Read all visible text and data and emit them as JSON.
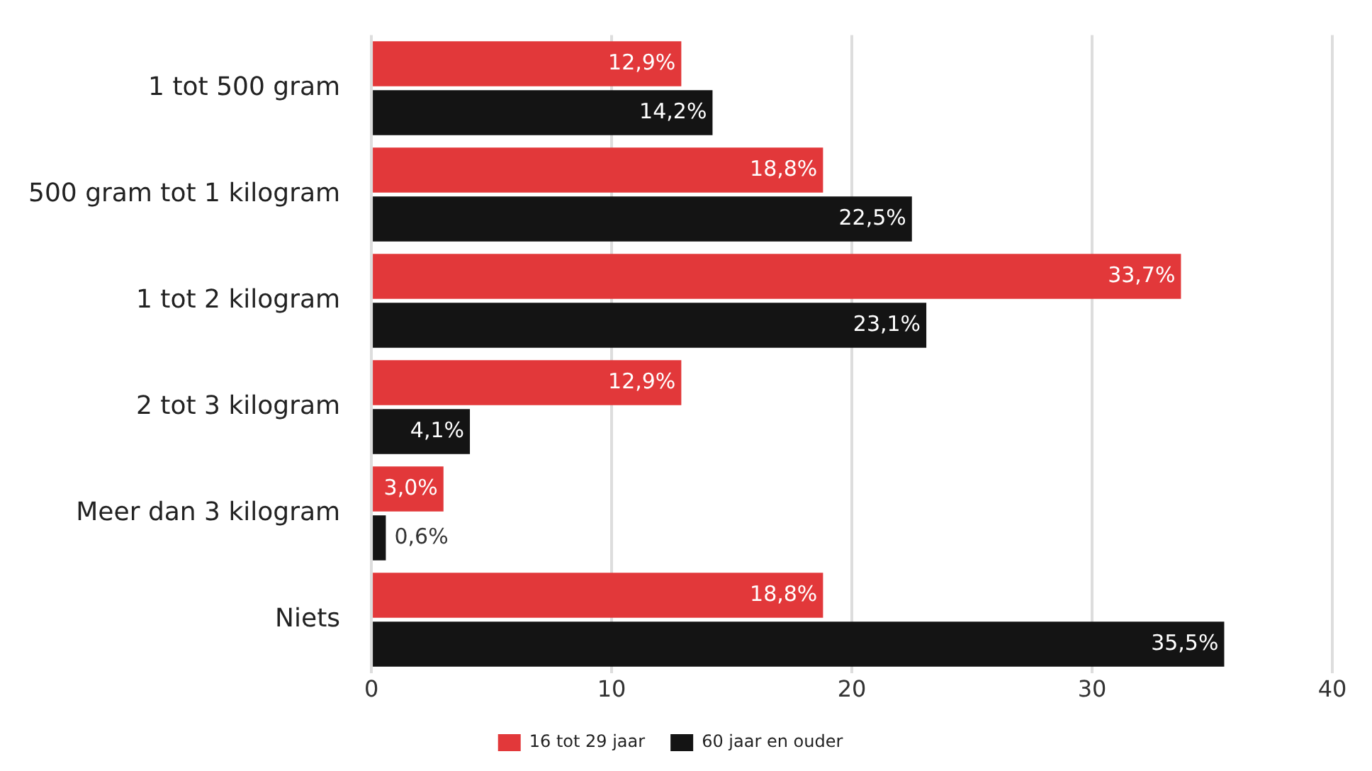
{
  "chart_data": {
    "type": "bar",
    "orientation": "horizontal",
    "categories": [
      "1 tot 500 gram",
      "500 gram tot 1 kilogram",
      "1 tot 2 kilogram",
      "2 tot 3 kilogram",
      "Meer dan 3 kilogram",
      "Niets"
    ],
    "series": [
      {
        "name": "16 tot 29 jaar",
        "color": "#e2383a",
        "values": [
          12.9,
          18.8,
          33.7,
          12.9,
          3.0,
          18.8
        ],
        "value_labels": [
          "12,9%",
          "18,8%",
          "33,7%",
          "12,9%",
          "3,0%",
          "18,8%"
        ]
      },
      {
        "name": "60 jaar en ouder",
        "color": "#141414",
        "values": [
          14.2,
          22.5,
          23.1,
          4.1,
          0.6,
          35.5
        ],
        "value_labels": [
          "14,2%",
          "22,5%",
          "23,1%",
          "4,1%",
          "0,6%",
          "35,5%"
        ]
      }
    ],
    "xlim": [
      0,
      40
    ],
    "xticks": [
      0,
      10,
      20,
      30,
      40
    ],
    "grid": "x",
    "legend": "bottom"
  }
}
